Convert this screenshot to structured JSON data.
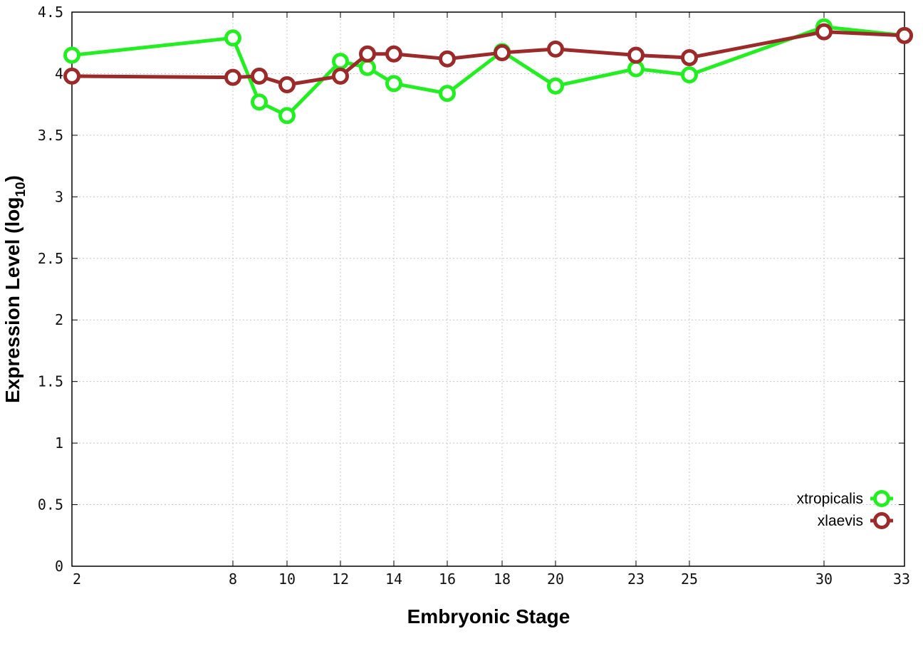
{
  "chart_data": {
    "type": "line",
    "xlabel": "Embryonic Stage",
    "ylabel_main": "Expression Level (log",
    "ylabel_sub": "10",
    "ylabel_close": ")",
    "x_tick_labels": [
      "2",
      "8",
      "10",
      "12",
      "14",
      "16",
      "18",
      "20",
      "23",
      "25",
      "30",
      "33"
    ],
    "y_tick_labels": [
      "0",
      "0.5",
      "1",
      "1.5",
      "2",
      "2.5",
      "3",
      "3.5",
      "4",
      "4.5"
    ],
    "ylim": [
      0,
      4.5
    ],
    "grid": true,
    "legend_position": "bottom-right",
    "series": [
      {
        "name": "xtropicalis",
        "color": "#22ee22",
        "points": [
          {
            "x": 2,
            "y": 4.15
          },
          {
            "x": 8,
            "y": 4.29
          },
          {
            "x": 9,
            "y": 3.77
          },
          {
            "x": 10,
            "y": 3.66
          },
          {
            "x": 12,
            "y": 4.1
          },
          {
            "x": 13,
            "y": 4.05
          },
          {
            "x": 14,
            "y": 3.92
          },
          {
            "x": 16,
            "y": 3.84
          },
          {
            "x": 18,
            "y": 4.18
          },
          {
            "x": 20,
            "y": 3.9
          },
          {
            "x": 23,
            "y": 4.04
          },
          {
            "x": 25,
            "y": 3.99
          },
          {
            "x": 30,
            "y": 4.38
          },
          {
            "x": 33,
            "y": 4.31
          }
        ]
      },
      {
        "name": "xlaevis",
        "color": "#9b2a2a",
        "points": [
          {
            "x": 2,
            "y": 3.98
          },
          {
            "x": 8,
            "y": 3.97
          },
          {
            "x": 9,
            "y": 3.98
          },
          {
            "x": 10,
            "y": 3.91
          },
          {
            "x": 12,
            "y": 3.98
          },
          {
            "x": 13,
            "y": 4.16
          },
          {
            "x": 14,
            "y": 4.16
          },
          {
            "x": 16,
            "y": 4.12
          },
          {
            "x": 18,
            "y": 4.17
          },
          {
            "x": 20,
            "y": 4.2
          },
          {
            "x": 23,
            "y": 4.15
          },
          {
            "x": 25,
            "y": 4.13
          },
          {
            "x": 30,
            "y": 4.34
          },
          {
            "x": 33,
            "y": 4.31
          }
        ]
      }
    ]
  }
}
